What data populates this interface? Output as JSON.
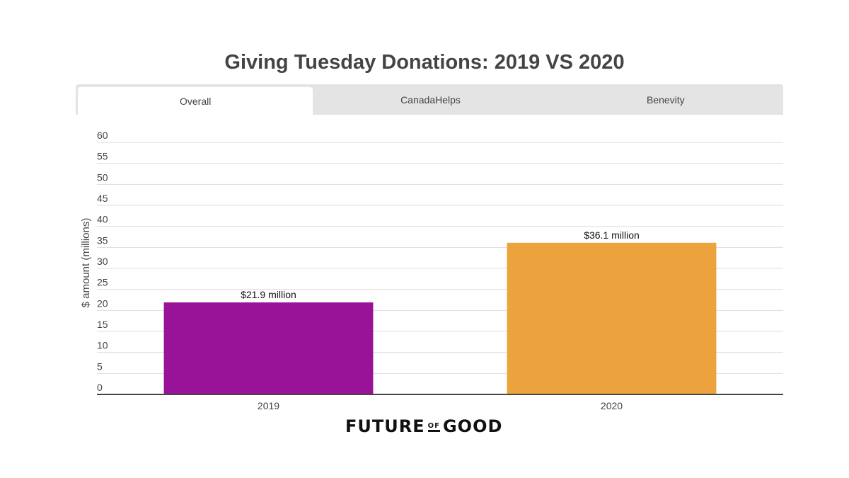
{
  "tabs": [
    "Overall",
    "CanadaHelps",
    "Benevity"
  ],
  "active_tab": 0,
  "logo": {
    "text": "FUTURE OF GOOD",
    "parts": [
      "FUTURE",
      "OF",
      "GOOD"
    ]
  },
  "chart_data": {
    "type": "bar",
    "title": "Giving Tuesday Donations: 2019 VS 2020",
    "categories": [
      "2019",
      "2020"
    ],
    "values": [
      21.9,
      36.1
    ],
    "data_labels": [
      "$21.9 million",
      "$36.1 million"
    ],
    "colors": [
      "#991399",
      "#eda33d"
    ],
    "xlabel": "",
    "ylabel": "$ amount (millions)",
    "ylim": [
      0,
      60
    ],
    "yticks": [
      0,
      5,
      10,
      15,
      20,
      25,
      30,
      35,
      40,
      45,
      50,
      55,
      60
    ],
    "grid": true
  }
}
